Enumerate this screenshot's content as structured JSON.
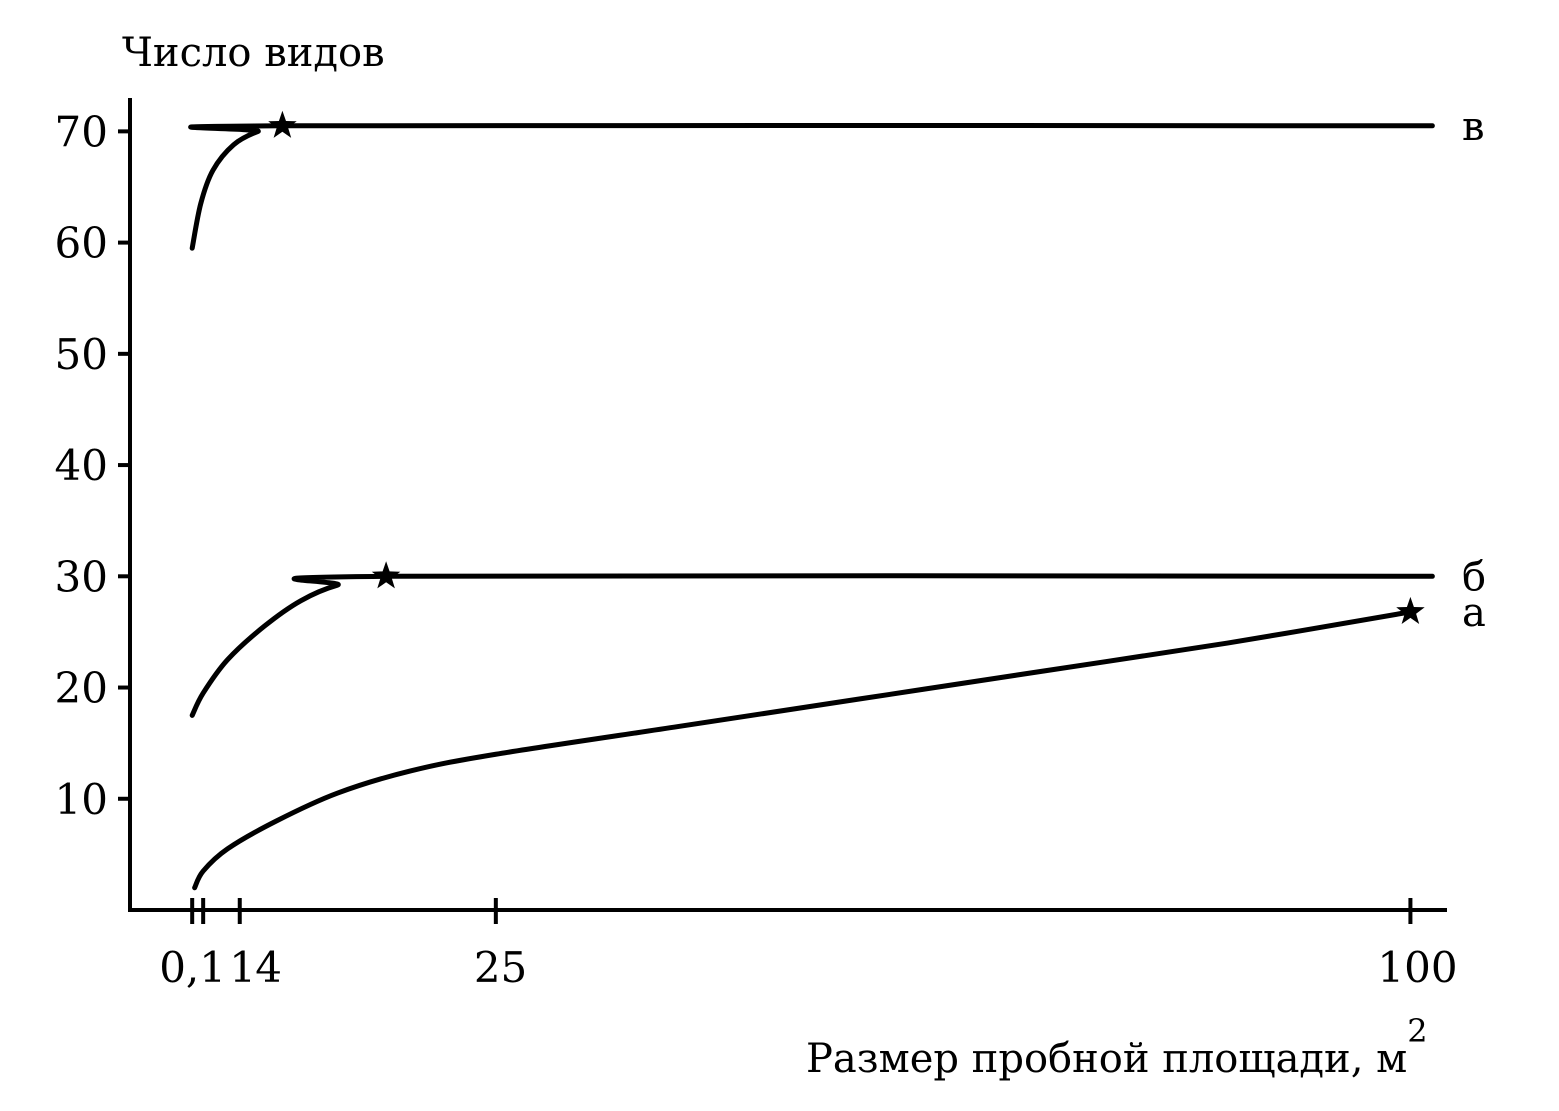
{
  "chart_data": {
    "type": "line",
    "xlabel": "Размер пробной площади, м",
    "xlabel_sup": "2",
    "ylabel": "Число видов",
    "x_ticks": [
      {
        "value": 0.1,
        "label": "0,1"
      },
      {
        "value": 1,
        "label": "1"
      },
      {
        "value": 4,
        "label": "4"
      },
      {
        "value": 25,
        "label": "25"
      },
      {
        "value": 100,
        "label": "100"
      }
    ],
    "y_ticks": [
      10,
      20,
      30,
      40,
      50,
      60,
      70
    ],
    "xlim": [
      -5,
      103
    ],
    "ylim": [
      0,
      73
    ],
    "series": [
      {
        "name": "а",
        "points": [
          [
            0.3,
            2
          ],
          [
            1,
            3.5
          ],
          [
            3,
            5.5
          ],
          [
            7,
            8
          ],
          [
            12,
            10.5
          ],
          [
            18,
            12.5
          ],
          [
            25,
            14
          ],
          [
            40,
            16.5
          ],
          [
            55,
            19
          ],
          [
            70,
            21.5
          ],
          [
            85,
            24
          ],
          [
            100,
            26.8
          ]
        ],
        "marker": {
          "x": 100,
          "y": 26.8
        }
      },
      {
        "name": "б",
        "points": [
          [
            0.1,
            17.5
          ],
          [
            1,
            19.5
          ],
          [
            3,
            22.5
          ],
          [
            6,
            25.5
          ],
          [
            9,
            27.8
          ],
          [
            12,
            29.2
          ],
          [
            16,
            30
          ],
          [
            101.8,
            30
          ]
        ],
        "marker": {
          "x": 16,
          "y": 30
        }
      },
      {
        "name": "в",
        "points": [
          [
            0.1,
            59.5
          ],
          [
            0.8,
            63.5
          ],
          [
            1.8,
            66.5
          ],
          [
            3.5,
            68.8
          ],
          [
            5.5,
            70
          ],
          [
            7.5,
            70.5
          ],
          [
            101.8,
            70.5
          ]
        ],
        "marker": {
          "x": 7.5,
          "y": 70.5
        }
      }
    ],
    "grid": false,
    "legend": "none"
  }
}
